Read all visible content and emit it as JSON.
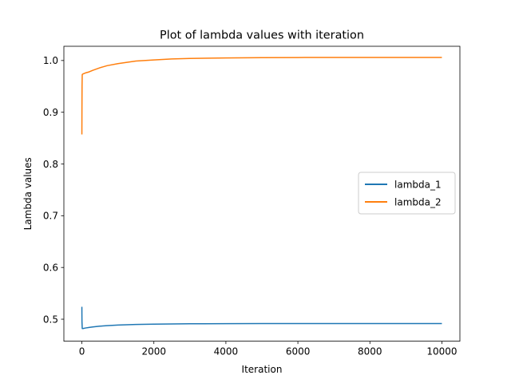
{
  "chart_data": {
    "type": "line",
    "title": "Plot of lambda values with iteration",
    "xlabel": "Iteration",
    "ylabel": "Lambda values",
    "xlim": [
      -500,
      10500
    ],
    "ylim": [
      0.4575,
      1.0275
    ],
    "xticks": [
      0,
      2000,
      4000,
      6000,
      8000,
      10000
    ],
    "xtick_labels": [
      "0",
      "2000",
      "4000",
      "6000",
      "8000",
      "10000"
    ],
    "yticks": [
      0.5,
      0.6,
      0.7,
      0.8,
      0.9,
      1.0
    ],
    "ytick_labels": [
      "0.5",
      "0.6",
      "0.7",
      "0.8",
      "0.9",
      "1.0"
    ],
    "grid": false,
    "legend_position": "center-right",
    "series": [
      {
        "name": "lambda_1",
        "color": "#1f77b4",
        "x": [
          0,
          1,
          3,
          10,
          30,
          100,
          200,
          300,
          500,
          700,
          1000,
          1500,
          2000,
          2500,
          3000,
          4000,
          5000,
          6000,
          7000,
          8000,
          9000,
          10000
        ],
        "y": [
          0.524,
          0.51,
          0.495,
          0.482,
          0.482,
          0.483,
          0.484,
          0.485,
          0.4865,
          0.4875,
          0.4887,
          0.4898,
          0.4905,
          0.4909,
          0.4912,
          0.4914,
          0.4915,
          0.4915,
          0.4915,
          0.4915,
          0.4915,
          0.4915
        ]
      },
      {
        "name": "lambda_2",
        "color": "#ff7f0e",
        "x": [
          0,
          2,
          5,
          10,
          30,
          100,
          200,
          300,
          500,
          700,
          1000,
          1500,
          2000,
          2500,
          3000,
          4000,
          5000,
          6000,
          7000,
          8000,
          9000,
          10000
        ],
        "y": [
          0.857,
          0.905,
          0.95,
          0.973,
          0.974,
          0.976,
          0.978,
          0.981,
          0.986,
          0.99,
          0.994,
          0.999,
          1.001,
          1.003,
          1.004,
          1.005,
          1.0055,
          1.0058,
          1.006,
          1.006,
          1.006,
          1.006
        ]
      }
    ]
  }
}
